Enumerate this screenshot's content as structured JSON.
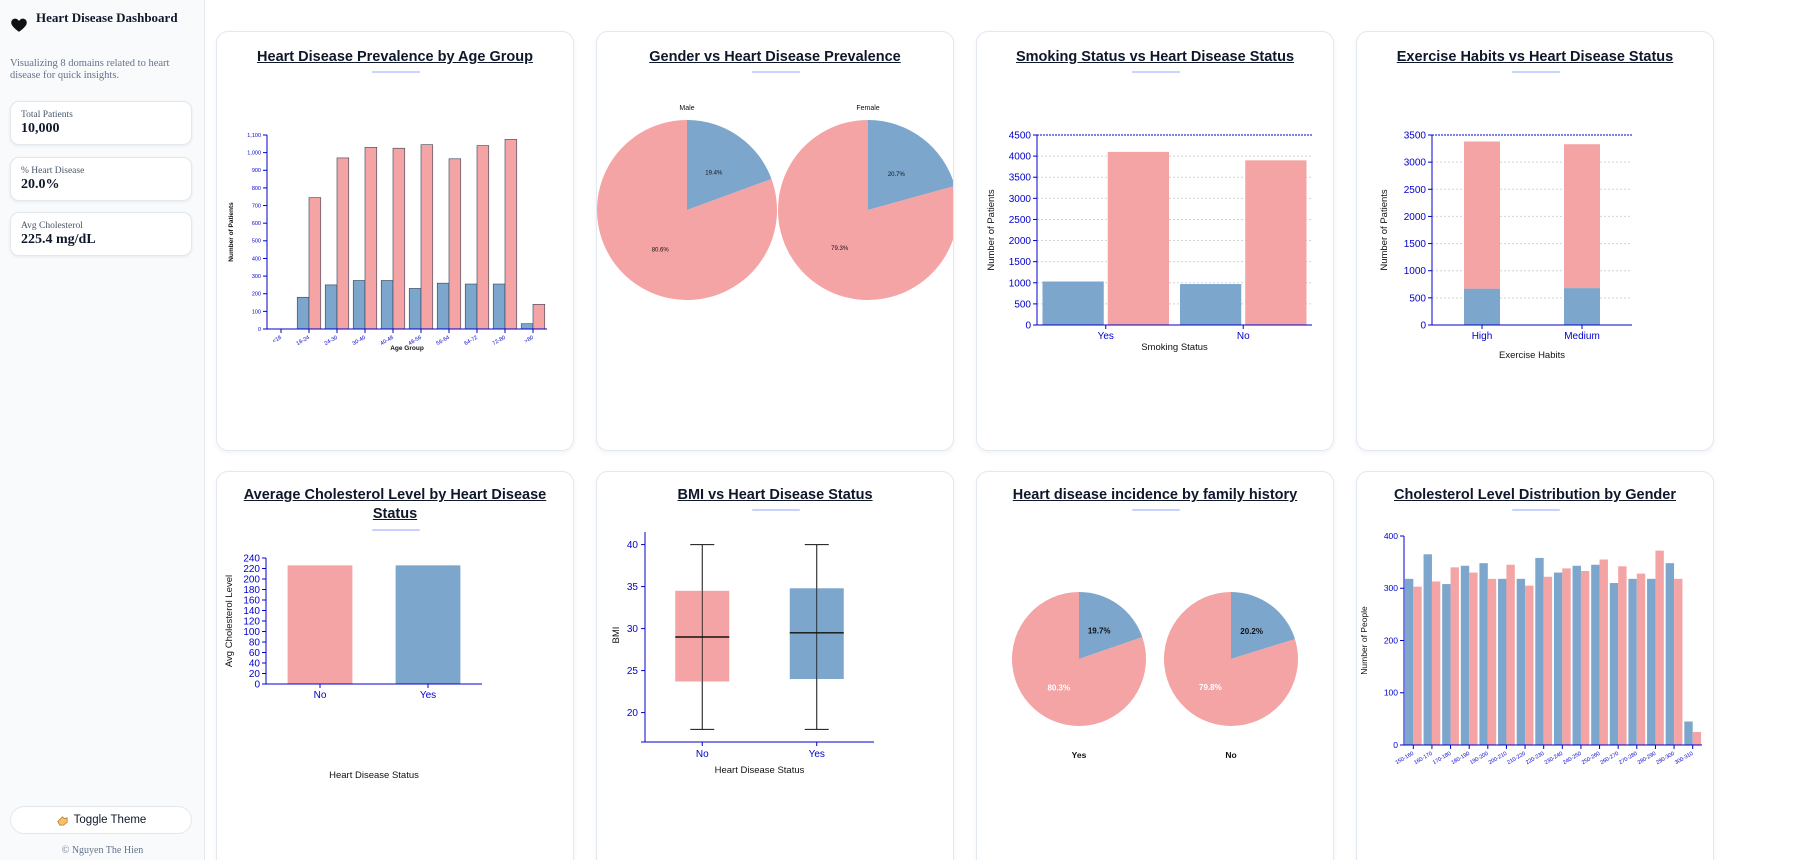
{
  "sidebar": {
    "title": "Heart Disease Dashboard",
    "description": "Visualizing 8 domains related to heart disease for quick insights.",
    "stats": [
      {
        "label": "Total Patients",
        "value": "10,000"
      },
      {
        "label": "% Heart Disease",
        "value": "20.0%"
      },
      {
        "label": "Avg Cholesterol",
        "value": "225.4 mg/dL"
      }
    ],
    "theme_button": "Toggle Theme",
    "copyright": "© Nguyen The Hien"
  },
  "colors": {
    "no_disease": "#f4a4a4",
    "disease": "#7ca6cc",
    "axis": "#0000cc"
  },
  "chart_data": [
    {
      "id": "age",
      "type": "bar",
      "title": "Heart Disease Prevalence by Age Group",
      "xlabel": "Age Group",
      "ylabel": "Number of Patients",
      "categories": [
        "<18",
        "18-24",
        "24-30",
        "30-40",
        "40-48",
        "48-56",
        "56-64",
        "64-72",
        "72-80",
        ">80"
      ],
      "series": [
        {
          "values": [
            0,
            180,
            250,
            275,
            275,
            230,
            260,
            255,
            255,
            30
          ]
        },
        {
          "values": [
            0,
            745,
            970,
            1030,
            1025,
            1045,
            965,
            1040,
            1075,
            140
          ]
        }
      ],
      "ylim": [
        0,
        1100
      ],
      "yticks": [
        0,
        100,
        200,
        300,
        400,
        500,
        600,
        700,
        800,
        900,
        "1,000",
        "1,100"
      ]
    },
    {
      "id": "gender",
      "type": "pie",
      "title": "Gender vs Heart Disease Prevalence",
      "pies": [
        {
          "label": "Male",
          "slices": [
            {
              "label": "19.4%",
              "value": 19.4
            },
            {
              "label": "80.6%",
              "value": 80.6
            }
          ]
        },
        {
          "label": "Female",
          "slices": [
            {
              "label": "20.7%",
              "value": 20.7
            },
            {
              "label": "79.3%",
              "value": 79.3
            }
          ]
        }
      ]
    },
    {
      "id": "smoking",
      "type": "bar",
      "title": "Smoking Status vs Heart Disease Status",
      "xlabel": "Smoking Status",
      "ylabel": "Number of Patients",
      "categories": [
        "Yes",
        "No"
      ],
      "series": [
        {
          "values": [
            1030,
            970
          ]
        },
        {
          "values": [
            4100,
            3900
          ]
        }
      ],
      "ylim": [
        0,
        4500
      ],
      "yticks": [
        0,
        500,
        1000,
        1500,
        2000,
        2500,
        3000,
        3500,
        4000,
        4500
      ],
      "grid": true
    },
    {
      "id": "exercise",
      "type": "bar",
      "title": "Exercise Habits vs Heart Disease Status",
      "xlabel": "Exercise Habits",
      "ylabel": "Number of Patients",
      "categories": [
        "High",
        "Medium"
      ],
      "series": [
        {
          "values": [
            670,
            680
          ]
        },
        {
          "values": [
            2710,
            2650
          ]
        }
      ],
      "stacked": true,
      "ylim": [
        0,
        3500
      ],
      "yticks": [
        0,
        500,
        1000,
        1500,
        2000,
        2500,
        3000,
        3500
      ],
      "grid": true
    },
    {
      "id": "cholesterol",
      "type": "bar",
      "title": "Average Cholesterol Level by Heart Disease Status",
      "xlabel": "Heart Disease Status",
      "ylabel": "Avg Cholesterol Level",
      "categories": [
        "No",
        "Yes"
      ],
      "values": [
        226,
        226
      ],
      "ylim": [
        0,
        240
      ],
      "yticks": [
        0,
        20,
        40,
        60,
        80,
        100,
        120,
        140,
        160,
        180,
        200,
        220,
        240
      ]
    },
    {
      "id": "bmi",
      "type": "box",
      "title": "BMI vs Heart Disease Status",
      "xlabel": "Heart Disease Status",
      "ylabel": "BMI",
      "categories": [
        "No",
        "Yes"
      ],
      "boxes": [
        {
          "min": 18,
          "q1": 23.7,
          "median": 29.0,
          "q3": 34.5,
          "max": 40
        },
        {
          "min": 18,
          "q1": 24.0,
          "median": 29.5,
          "q3": 34.8,
          "max": 40
        }
      ],
      "yticks": [
        20,
        25,
        30,
        35,
        40
      ]
    },
    {
      "id": "family",
      "type": "pie",
      "title": "Heart disease incidence by family history",
      "pies": [
        {
          "label": "Yes",
          "slices": [
            {
              "label": "19.7%",
              "value": 19.7
            },
            {
              "label": "80.3%",
              "value": 80.3
            }
          ]
        },
        {
          "label": "No",
          "slices": [
            {
              "label": "20.2%",
              "value": 20.2
            },
            {
              "label": "79.8%",
              "value": 79.8
            }
          ]
        }
      ]
    },
    {
      "id": "chol-dist",
      "type": "bar",
      "title": "Cholesterol Level Distribution by Gender",
      "ylabel": "Number of People",
      "categories": [
        "150-160",
        "160-170",
        "170-180",
        "180-190",
        "190-200",
        "200-210",
        "210-220",
        "220-230",
        "230-240",
        "240-250",
        "250-260",
        "260-270",
        "270-280",
        "280-290",
        "290-300",
        "300-310"
      ],
      "series": [
        {
          "values": [
            318,
            365,
            308,
            343,
            348,
            318,
            318,
            358,
            330,
            343,
            345,
            310,
            318,
            318,
            348,
            45
          ]
        },
        {
          "values": [
            303,
            313,
            340,
            330,
            318,
            345,
            305,
            322,
            338,
            333,
            355,
            342,
            328,
            372,
            318,
            25
          ]
        }
      ],
      "ylim": [
        0,
        400
      ],
      "yticks": [
        0,
        100,
        200,
        300,
        400
      ]
    }
  ]
}
